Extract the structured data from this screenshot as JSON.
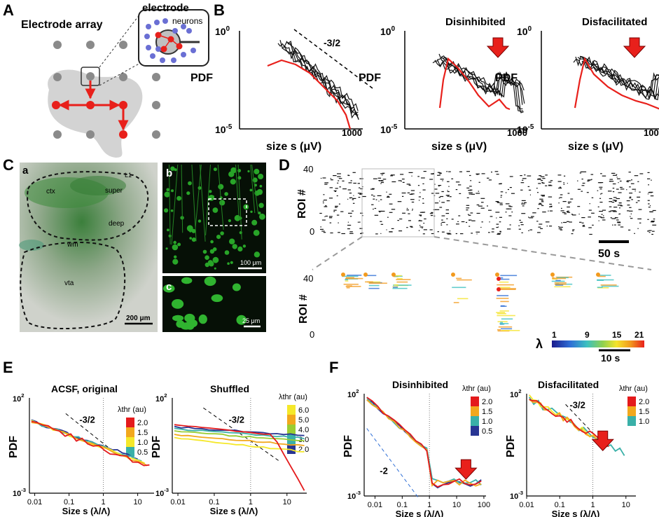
{
  "panels": {
    "A": {
      "letter": "A",
      "title": "Electrode array",
      "electrode": "electrode",
      "neurons": "neurons"
    },
    "B": {
      "letter": "B",
      "plots": [
        {
          "title": "",
          "ylabel": "PDF",
          "xlabel": "size s  (μV)",
          "ytop": "10",
          "ytop_exp": "0",
          "ybot": "10",
          "ybot_exp": "-5",
          "xmax": "1000",
          "slope": "-3/2"
        },
        {
          "title": "Disinhibited",
          "ylabel": "PDF",
          "xlabel": "size s  (μV)",
          "ytop": "10",
          "ytop_exp": "0",
          "ybot": "10",
          "ybot_exp": "-5",
          "xmax": "1000"
        },
        {
          "title": "Disfacilitated",
          "ylabel": "PDF",
          "xlabel": "size s  (μV)",
          "ytop": "10",
          "ytop_exp": "0",
          "ybot": "10",
          "ybot_exp": "-5",
          "xmax": "1000"
        }
      ]
    },
    "C": {
      "letter": "C",
      "sub_a": "a",
      "sub_b": "b",
      "sub_c": "c",
      "regions": [
        "ctx",
        "super",
        "deep",
        "wm",
        "vta",
        "L1"
      ],
      "scale_a": "200 μm",
      "scale_b": "100 μm",
      "scale_c": "25 μm"
    },
    "D": {
      "letter": "D",
      "ylabel": "ROI #",
      "ytop": "40",
      "ybot": "0",
      "scale_top": "50 s",
      "scale_bot": "10 s",
      "lambda": "λ",
      "colorbar_ticks": [
        "1",
        "9",
        "15",
        "21"
      ]
    },
    "E": {
      "letter": "E",
      "plots": [
        {
          "title": "ACSF, original",
          "legend_title": "λthr (au)",
          "legend": [
            "2.0",
            "1.5",
            "1.0",
            "0.5"
          ],
          "slope": "-3/2"
        },
        {
          "title": "Shuffled",
          "legend_title": "λthr (au)",
          "legend": [
            "6.0",
            "5.0",
            "4.0",
            "3.0",
            "2.0"
          ],
          "slope": "-3/2"
        }
      ],
      "ylabel": "PDF",
      "xlabel": "Size s (λ/Λ)",
      "xticks": [
        "0.01",
        "0.1",
        "1",
        "10"
      ],
      "ytop": "10",
      "ytop_exp": "2",
      "ybot": "10",
      "ybot_exp": "-3"
    },
    "F": {
      "letter": "F",
      "plots": [
        {
          "title": "Disinhibited",
          "legend_title": "λthr (au)",
          "legend": [
            "2.0",
            "1.5",
            "1.0",
            "0.5"
          ],
          "slope": "-2",
          "xticks": [
            "0.01",
            "0.1",
            "1",
            "10",
            "100"
          ]
        },
        {
          "title": "Disfacilitated",
          "legend_title": "λthr (au)",
          "legend": [
            "2.0",
            "1.5",
            "1.0"
          ],
          "slope": "-3/2",
          "xticks": [
            "0.01",
            "0.1",
            "1",
            "10"
          ]
        }
      ],
      "ylabel": "PDF",
      "xlabel": "Size s (λ/Λ)",
      "ytop": "10",
      "ytop_exp": "2",
      "ybot": "10",
      "ybot_exp": "-3"
    }
  },
  "colors": {
    "red": "#e8201b",
    "gray": "#c8c8c8",
    "dot": "#8a8a8a",
    "arrow": "#e8201b"
  },
  "legend_colors": {
    "E0": [
      "#e41a1c",
      "#f2a81d",
      "#f5e82a",
      "#3ab0a8",
      "#283593"
    ],
    "E1": [
      "#f5e82a",
      "#f2a81d",
      "#9acd32",
      "#3ab0a8",
      "#283593"
    ]
  }
}
